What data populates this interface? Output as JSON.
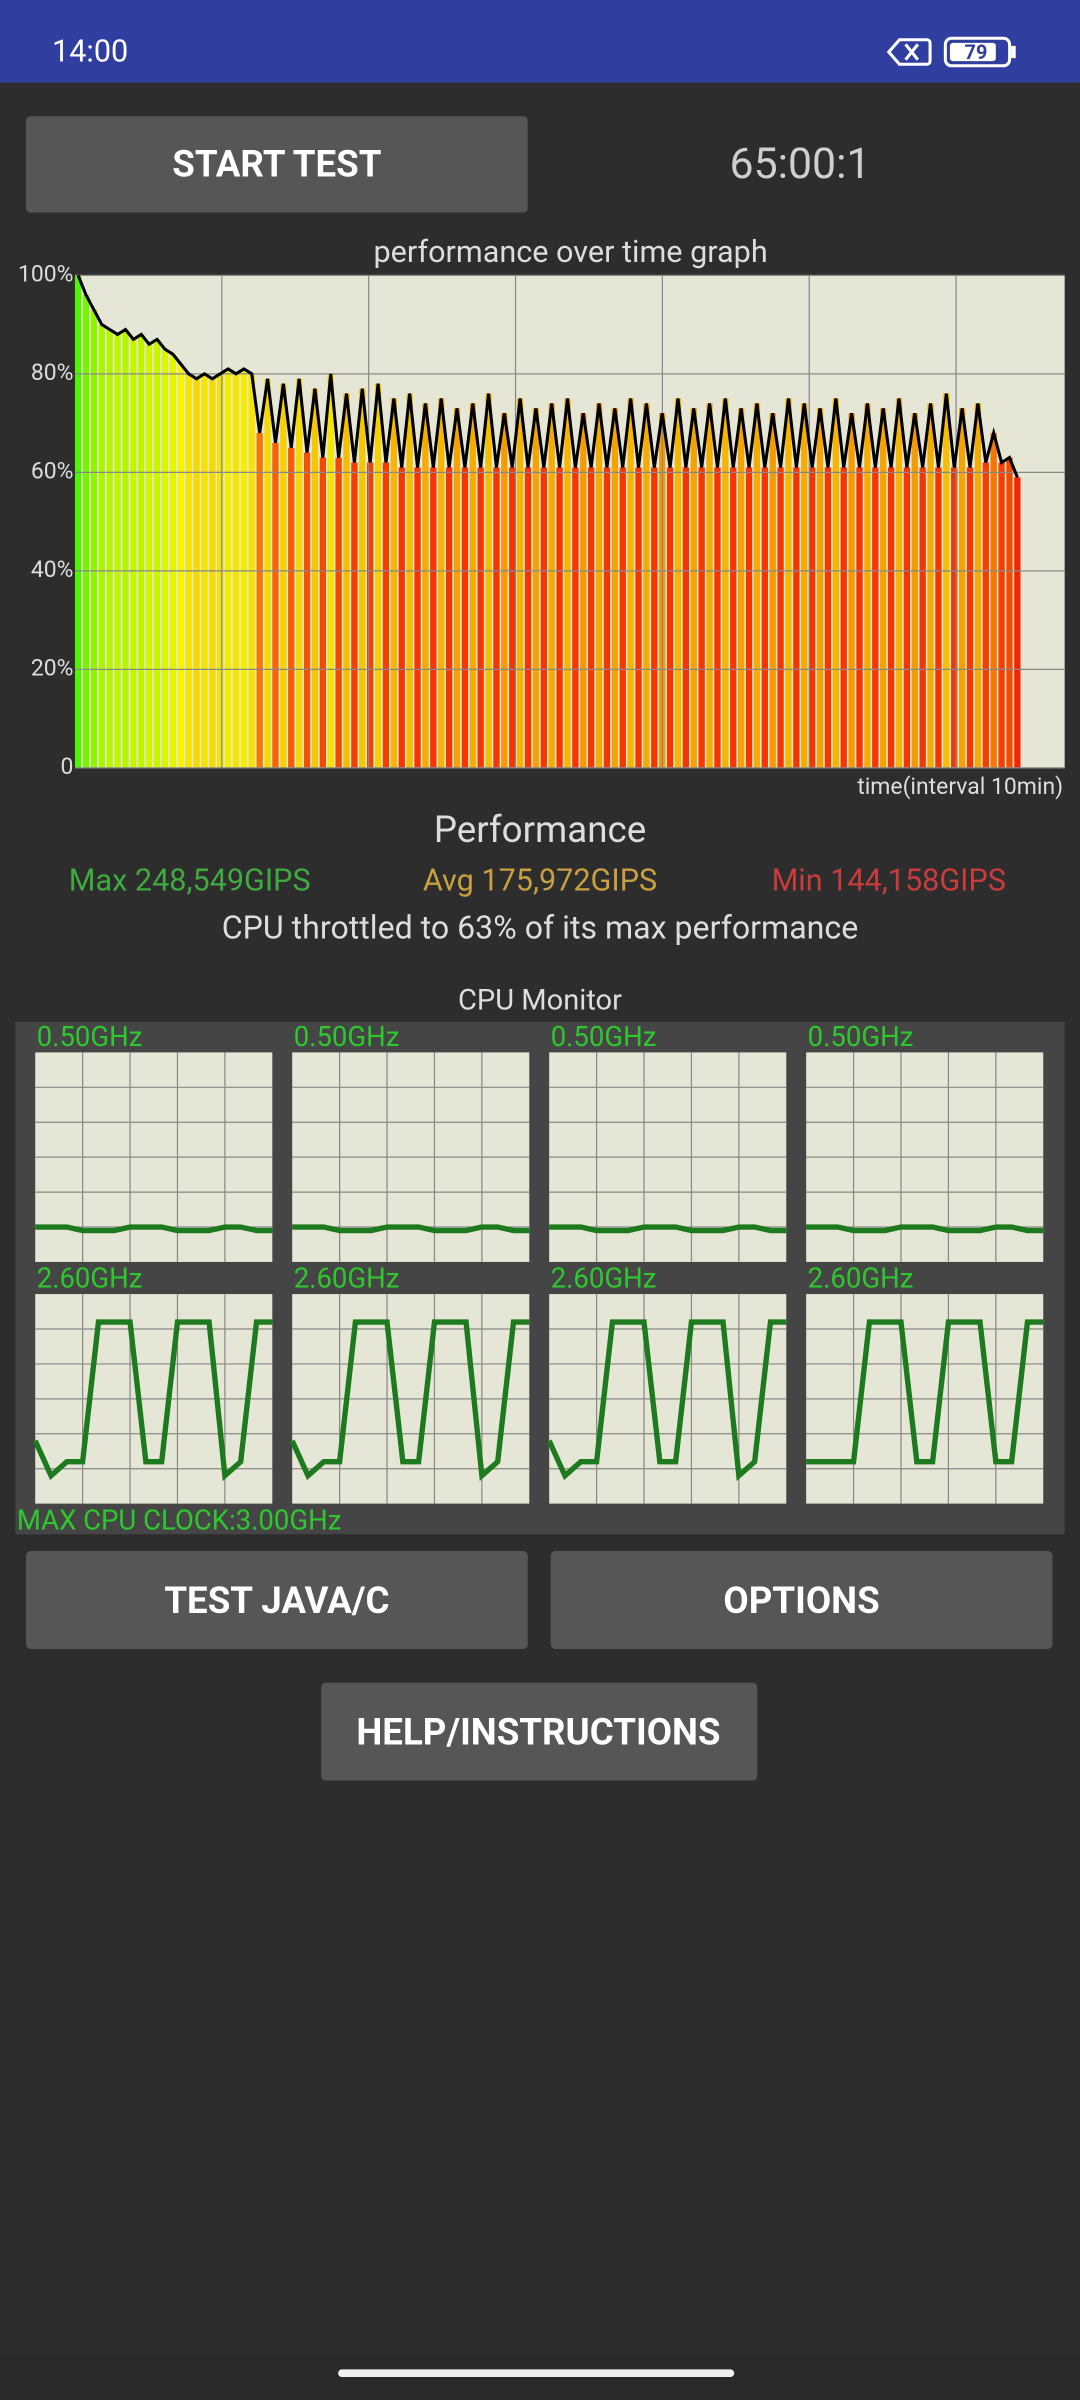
{
  "status_bar": {
    "time": "14:00",
    "battery_level": "79"
  },
  "controls": {
    "start_button": "START TEST",
    "timer": "65:00:1"
  },
  "performance_graph": {
    "type": "line",
    "title": "performance over time graph",
    "xlabel": "time(interval 10min)",
    "ylim": [
      0,
      100
    ],
    "yticks": [
      0,
      {
        "value": 20,
        "label": "20%"
      },
      {
        "value": 40,
        "label": "40%"
      },
      {
        "value": 60,
        "label": "60%"
      },
      {
        "value": 80,
        "label": "80%"
      },
      {
        "value": 100,
        "label": "100%"
      }
    ],
    "grid": true,
    "values": [
      100,
      96,
      93,
      90,
      89,
      88,
      89,
      87,
      88,
      86,
      87,
      85,
      84,
      82,
      80,
      79,
      80,
      79,
      80,
      81,
      80,
      81,
      80,
      68,
      79,
      66,
      78,
      65,
      79,
      64,
      77,
      63,
      80,
      63,
      76,
      62,
      77,
      62,
      78,
      62,
      75,
      61,
      76,
      61,
      74,
      61,
      75,
      61,
      73,
      61,
      74,
      61,
      76,
      61,
      72,
      61,
      75,
      61,
      73,
      61,
      74,
      61,
      75,
      61,
      72,
      61,
      74,
      61,
      73,
      61,
      75,
      61,
      74,
      61,
      72,
      61,
      75,
      61,
      73,
      61,
      74,
      61,
      75,
      61,
      73,
      61,
      74,
      61,
      72,
      61,
      75,
      61,
      74,
      61,
      73,
      61,
      75,
      61,
      72,
      61,
      74,
      61,
      73,
      61,
      75,
      61,
      72,
      61,
      74,
      61,
      76,
      61,
      73,
      61,
      74,
      62,
      68,
      62,
      63,
      59
    ]
  },
  "performance": {
    "heading": "Performance",
    "max": "Max 248,549GIPS",
    "avg": "Avg 175,972GIPS",
    "min": "Min 144,158GIPS",
    "throttle_note": "CPU throttled to 63% of its max performance"
  },
  "cpu_monitor": {
    "title": "CPU Monitor",
    "ylim": [
      0,
      3
    ],
    "cores": [
      {
        "label": "0.50GHz",
        "values": [
          0.5,
          0.5,
          0.5,
          0.45,
          0.45,
          0.45,
          0.5,
          0.5,
          0.5,
          0.45,
          0.45,
          0.45,
          0.5,
          0.5,
          0.45,
          0.45
        ]
      },
      {
        "label": "0.50GHz",
        "values": [
          0.5,
          0.5,
          0.5,
          0.45,
          0.45,
          0.45,
          0.5,
          0.5,
          0.5,
          0.45,
          0.45,
          0.45,
          0.5,
          0.5,
          0.45,
          0.45
        ]
      },
      {
        "label": "0.50GHz",
        "values": [
          0.5,
          0.5,
          0.5,
          0.45,
          0.45,
          0.45,
          0.5,
          0.5,
          0.5,
          0.45,
          0.45,
          0.45,
          0.5,
          0.5,
          0.45,
          0.45
        ]
      },
      {
        "label": "0.50GHz",
        "values": [
          0.5,
          0.5,
          0.5,
          0.45,
          0.45,
          0.45,
          0.5,
          0.5,
          0.5,
          0.45,
          0.45,
          0.45,
          0.5,
          0.5,
          0.45,
          0.45
        ]
      },
      {
        "label": "2.60GHz",
        "values": [
          0.9,
          0.4,
          0.6,
          0.6,
          2.6,
          2.6,
          2.6,
          0.6,
          0.6,
          2.6,
          2.6,
          2.6,
          0.4,
          0.6,
          2.6,
          2.6
        ]
      },
      {
        "label": "2.60GHz",
        "values": [
          0.9,
          0.4,
          0.6,
          0.6,
          2.6,
          2.6,
          2.6,
          0.6,
          0.6,
          2.6,
          2.6,
          2.6,
          0.4,
          0.6,
          2.6,
          2.6
        ]
      },
      {
        "label": "2.60GHz",
        "values": [
          0.9,
          0.4,
          0.6,
          0.6,
          2.6,
          2.6,
          2.6,
          0.6,
          0.6,
          2.6,
          2.6,
          2.6,
          0.4,
          0.6,
          2.6,
          2.6
        ]
      },
      {
        "label": "2.60GHz",
        "values": [
          0.6,
          0.6,
          0.6,
          0.6,
          2.6,
          2.6,
          2.6,
          0.6,
          0.6,
          2.6,
          2.6,
          2.6,
          0.6,
          0.6,
          2.6,
          2.6
        ]
      }
    ],
    "max_clock": "MAX CPU CLOCK:3.00GHz"
  },
  "buttons": {
    "test_java_c": "TEST JAVA/C",
    "options": "OPTIONS",
    "help": "HELP/INSTRUCTIONS"
  }
}
